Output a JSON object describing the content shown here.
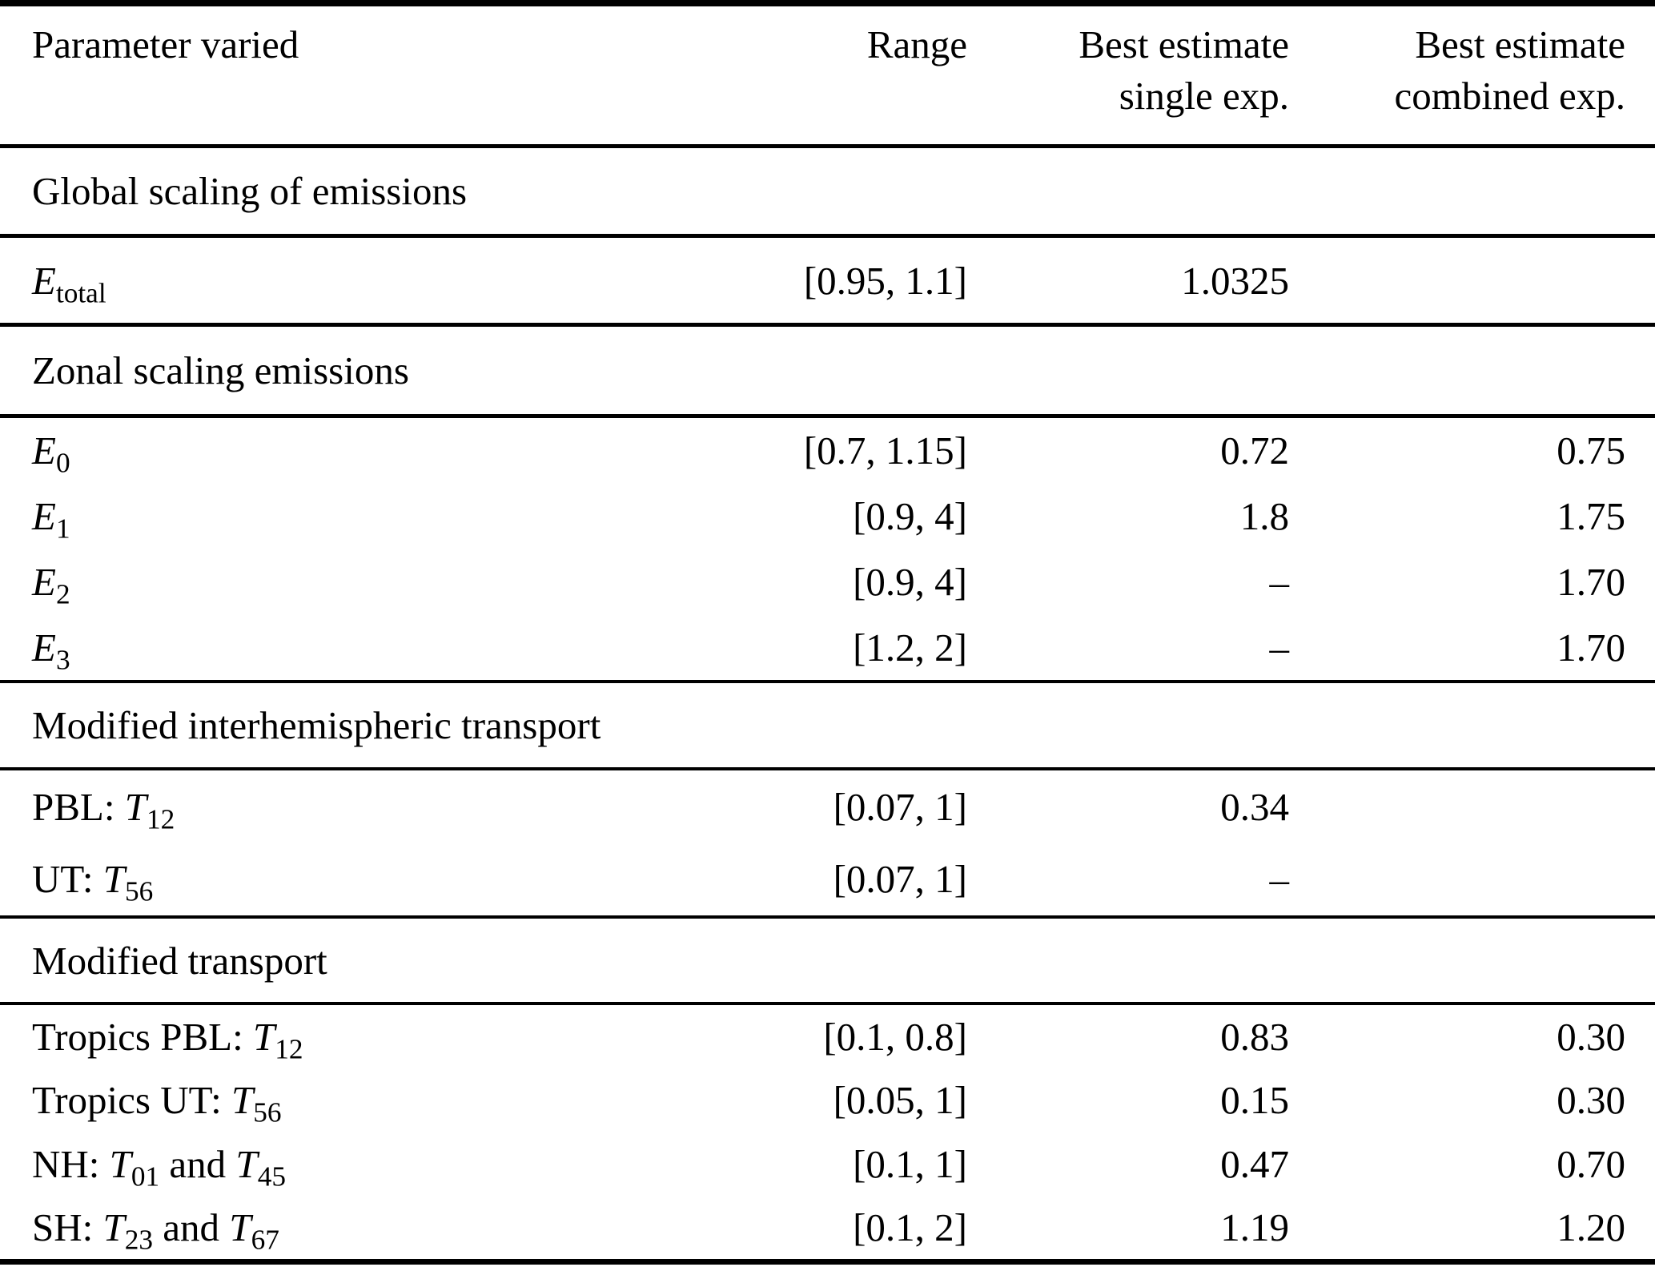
{
  "page": {
    "background": "#ffffff",
    "text_color": "#000000",
    "rule_color": "#000000"
  },
  "table": {
    "headers": {
      "parameter": "Parameter varied",
      "range": "Range",
      "single_line1": "Best estimate",
      "single_line2": "single exp.",
      "combined_line1": "Best estimate",
      "combined_line2": "combined exp."
    },
    "sections": [
      {
        "title": "Global scaling of emissions",
        "rows": [
          {
            "label": [
              {
                "t": "E",
                "it": true
              },
              {
                "t": "total",
                "sub": true
              }
            ],
            "range": "[0.95, 1.1]",
            "single": "1.0325",
            "combined": ""
          }
        ]
      },
      {
        "title": "Zonal scaling emissions",
        "rows": [
          {
            "label": [
              {
                "t": "E",
                "it": true
              },
              {
                "t": "0",
                "sub": true
              }
            ],
            "range": "[0.7, 1.15]",
            "single": "0.72",
            "combined": "0.75"
          },
          {
            "label": [
              {
                "t": "E",
                "it": true
              },
              {
                "t": "1",
                "sub": true
              }
            ],
            "range": "[0.9, 4]",
            "single": "1.8",
            "combined": "1.75"
          },
          {
            "label": [
              {
                "t": "E",
                "it": true
              },
              {
                "t": "2",
                "sub": true
              }
            ],
            "range": "[0.9, 4]",
            "single": "–",
            "combined": "1.70"
          },
          {
            "label": [
              {
                "t": "E",
                "it": true
              },
              {
                "t": "3",
                "sub": true
              }
            ],
            "range": "[1.2, 2]",
            "single": "–",
            "combined": "1.70"
          }
        ]
      },
      {
        "title": "Modified interhemispheric transport",
        "rows": [
          {
            "label": [
              {
                "t": "PBL: "
              },
              {
                "t": "T",
                "it": true
              },
              {
                "t": "12",
                "sub": true
              }
            ],
            "range": "[0.07, 1]",
            "single": "0.34",
            "combined": ""
          },
          {
            "label": [
              {
                "t": "UT: "
              },
              {
                "t": "T",
                "it": true
              },
              {
                "t": "56",
                "sub": true
              }
            ],
            "range": "[0.07, 1]",
            "single": "–",
            "combined": ""
          }
        ]
      },
      {
        "title": "Modified transport",
        "rows": [
          {
            "label": [
              {
                "t": "Tropics PBL: "
              },
              {
                "t": "T",
                "it": true
              },
              {
                "t": "12",
                "sub": true
              }
            ],
            "range": "[0.1, 0.8]",
            "single": "0.83",
            "combined": "0.30"
          },
          {
            "label": [
              {
                "t": "Tropics UT: "
              },
              {
                "t": "T",
                "it": true
              },
              {
                "t": "56",
                "sub": true
              }
            ],
            "range": "[0.05, 1]",
            "single": "0.15",
            "combined": "0.30"
          },
          {
            "label": [
              {
                "t": "NH: "
              },
              {
                "t": "T",
                "it": true
              },
              {
                "t": "01",
                "sub": true
              },
              {
                "t": " and "
              },
              {
                "t": "T",
                "it": true
              },
              {
                "t": "45",
                "sub": true
              }
            ],
            "range": "[0.1, 1]",
            "single": "0.47",
            "combined": "0.70"
          },
          {
            "label": [
              {
                "t": "SH: "
              },
              {
                "t": "T",
                "it": true
              },
              {
                "t": "23",
                "sub": true
              },
              {
                "t": " and "
              },
              {
                "t": "T",
                "it": true
              },
              {
                "t": "67",
                "sub": true
              }
            ],
            "range": "[0.1, 2]",
            "single": "1.19",
            "combined": "1.20"
          }
        ]
      }
    ]
  }
}
